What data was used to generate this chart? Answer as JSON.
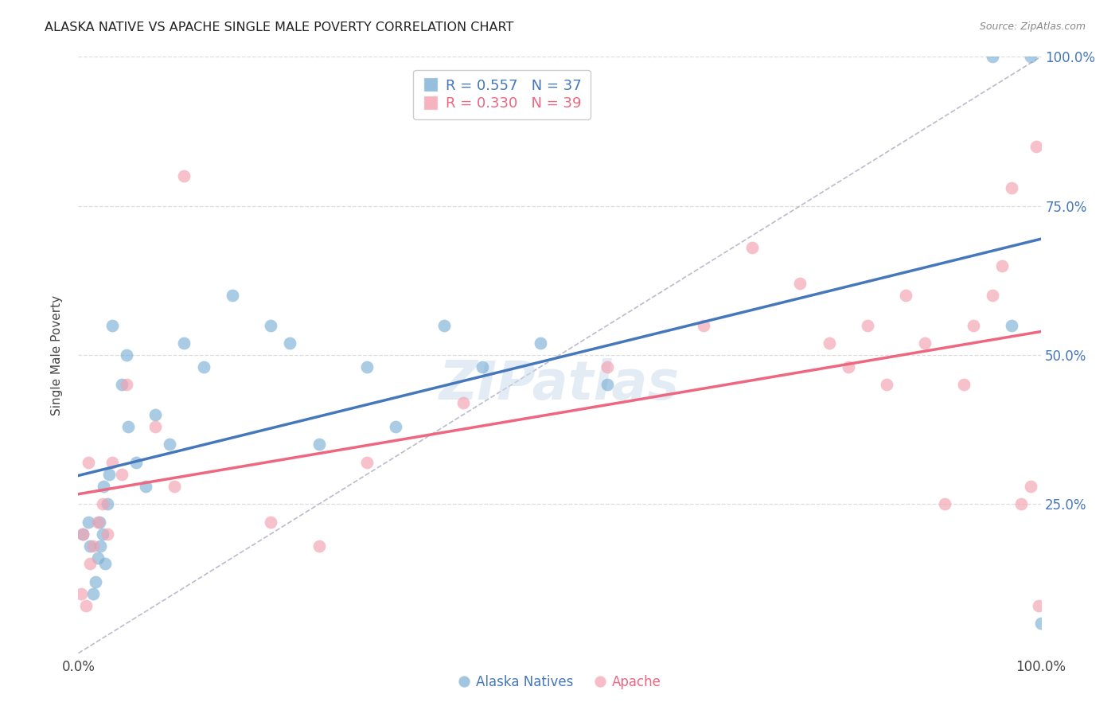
{
  "title": "ALASKA NATIVE VS APACHE SINGLE MALE POVERTY CORRELATION CHART",
  "source": "Source: ZipAtlas.com",
  "ylabel": "Single Male Poverty",
  "watermark": "ZIPatlas",
  "alaska_x": [
    0.5,
    1.0,
    1.2,
    1.5,
    1.8,
    2.0,
    2.2,
    2.3,
    2.5,
    2.6,
    2.8,
    3.0,
    3.2,
    3.5,
    4.5,
    5.0,
    5.2,
    6.0,
    7.0,
    8.0,
    9.5,
    11.0,
    13.0,
    16.0,
    20.0,
    22.0,
    25.0,
    30.0,
    33.0,
    38.0,
    42.0,
    48.0,
    55.0,
    95.0,
    97.0,
    99.0,
    100.0
  ],
  "alaska_y": [
    20.0,
    22.0,
    18.0,
    10.0,
    12.0,
    16.0,
    22.0,
    18.0,
    20.0,
    28.0,
    15.0,
    25.0,
    30.0,
    55.0,
    45.0,
    50.0,
    38.0,
    32.0,
    28.0,
    40.0,
    35.0,
    52.0,
    48.0,
    60.0,
    55.0,
    52.0,
    35.0,
    48.0,
    38.0,
    55.0,
    48.0,
    52.0,
    45.0,
    100.0,
    55.0,
    100.0,
    5.0
  ],
  "apache_x": [
    0.3,
    0.5,
    0.8,
    1.0,
    1.2,
    1.5,
    2.0,
    2.5,
    3.0,
    3.5,
    4.5,
    5.0,
    8.0,
    10.0,
    11.0,
    20.0,
    25.0,
    30.0,
    40.0,
    55.0,
    65.0,
    70.0,
    75.0,
    78.0,
    80.0,
    82.0,
    84.0,
    86.0,
    88.0,
    90.0,
    92.0,
    93.0,
    95.0,
    96.0,
    97.0,
    98.0,
    99.0,
    99.5,
    99.8
  ],
  "apache_y": [
    10.0,
    20.0,
    8.0,
    32.0,
    15.0,
    18.0,
    22.0,
    25.0,
    20.0,
    32.0,
    30.0,
    45.0,
    38.0,
    28.0,
    80.0,
    22.0,
    18.0,
    32.0,
    42.0,
    48.0,
    55.0,
    68.0,
    62.0,
    52.0,
    48.0,
    55.0,
    45.0,
    60.0,
    52.0,
    25.0,
    45.0,
    55.0,
    60.0,
    65.0,
    78.0,
    25.0,
    28.0,
    85.0,
    8.0
  ],
  "alaska_R": 0.557,
  "alaska_N": 37,
  "apache_R": 0.33,
  "apache_N": 39,
  "alaska_color": "#7BAFD4",
  "apache_color": "#F4A0B0",
  "alaska_line_color": "#4477BB",
  "apache_line_color": "#EE6680",
  "diagonal_color": "#BBBBCC",
  "background_color": "#FFFFFF",
  "grid_color": "#DDDDDD",
  "xlim": [
    0,
    100
  ],
  "ylim": [
    0,
    100
  ]
}
